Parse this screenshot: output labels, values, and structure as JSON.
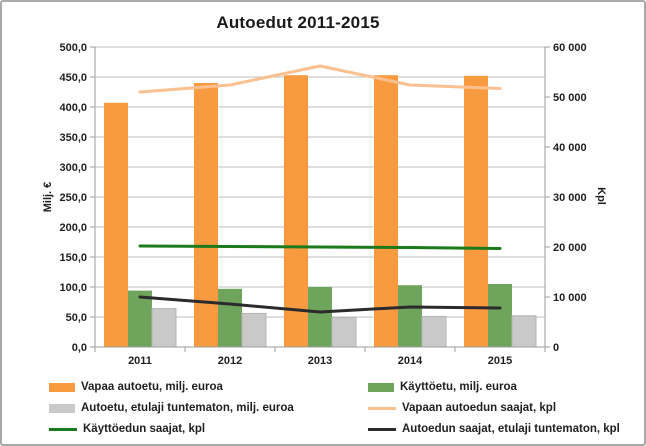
{
  "chart_data": {
    "type": "bar",
    "subtype": "combo-bar-line-dual-axis",
    "title": "Autoedut 2011-2015",
    "categories": [
      "2011",
      "2012",
      "2013",
      "2014",
      "2015"
    ],
    "left_axis": {
      "label": "Milj. €",
      "min": 0,
      "max": 500,
      "step": 50,
      "tick_labels": [
        "0,0",
        "50,0",
        "100,0",
        "150,0",
        "200,0",
        "250,0",
        "300,0",
        "350,0",
        "400,0",
        "450,0",
        "500,0"
      ]
    },
    "right_axis": {
      "label": "Kpl",
      "min": 0,
      "max": 60000,
      "step": 10000,
      "tick_labels": [
        "0",
        "10 000",
        "20 000",
        "30 000",
        "40 000",
        "50 000",
        "60 000"
      ]
    },
    "grid": "horizontal",
    "series": [
      {
        "name": "Vapaa autoetu, milj. euroa",
        "kind": "bar",
        "axis": "left",
        "color": "#F89B40",
        "values": [
          407,
          440,
          453,
          453,
          452
        ]
      },
      {
        "name": "Käyttöetu, milj. euroa",
        "kind": "bar",
        "axis": "left",
        "color": "#6FA45C",
        "values": [
          94,
          97,
          100,
          103,
          105
        ]
      },
      {
        "name": "Autoetu, etulaji tuntematon, milj. euroa",
        "kind": "bar",
        "axis": "left",
        "color": "#C9C9C9",
        "values": [
          64,
          56,
          49,
          51,
          52
        ]
      },
      {
        "name": "Vapaan autoedun saajat, kpl",
        "kind": "line",
        "axis": "right",
        "color": "#FAC090",
        "values": [
          51000,
          52400,
          56200,
          52400,
          51700
        ]
      },
      {
        "name": "Käyttöedun saajat, kpl",
        "kind": "line",
        "axis": "right",
        "color": "#1B7A1B",
        "values": [
          20200,
          20100,
          20000,
          19900,
          19700
        ]
      },
      {
        "name": "Autoedun saajat, etulaji tuntematon, kpl",
        "kind": "line",
        "axis": "right",
        "color": "#2B2B2B",
        "values": [
          10000,
          8600,
          7000,
          8000,
          7800
        ]
      }
    ],
    "legend": {
      "position": "bottom-two-columns",
      "items": [
        {
          "label": "Vapaa autoetu, milj. euroa",
          "swatch": "bar",
          "color": "#F89B40",
          "col": 0,
          "row": 0
        },
        {
          "label": "Käyttöetu, milj. euroa",
          "swatch": "bar",
          "color": "#6FA45C",
          "col": 1,
          "row": 0
        },
        {
          "label": "Autoetu, etulaji tuntematon, milj. euroa",
          "swatch": "bar",
          "color": "#C9C9C9",
          "col": 0,
          "row": 1
        },
        {
          "label": "Vapaan autoedun saajat, kpl",
          "swatch": "line",
          "color": "#FAC090",
          "col": 1,
          "row": 1
        },
        {
          "label": "Käyttöedun saajat, kpl",
          "swatch": "line",
          "color": "#1B7A1B",
          "col": 0,
          "row": 2
        },
        {
          "label": "Autoedun saajat, etulaji tuntematon, kpl",
          "swatch": "line",
          "color": "#2B2B2B",
          "col": 1,
          "row": 2
        }
      ]
    },
    "style": {
      "gridline_color": "#BFBFBF",
      "axis_color": "#9E9E9E",
      "text_color": "#1F1F1F",
      "gray_bar_border": "#B5B5B5"
    }
  }
}
